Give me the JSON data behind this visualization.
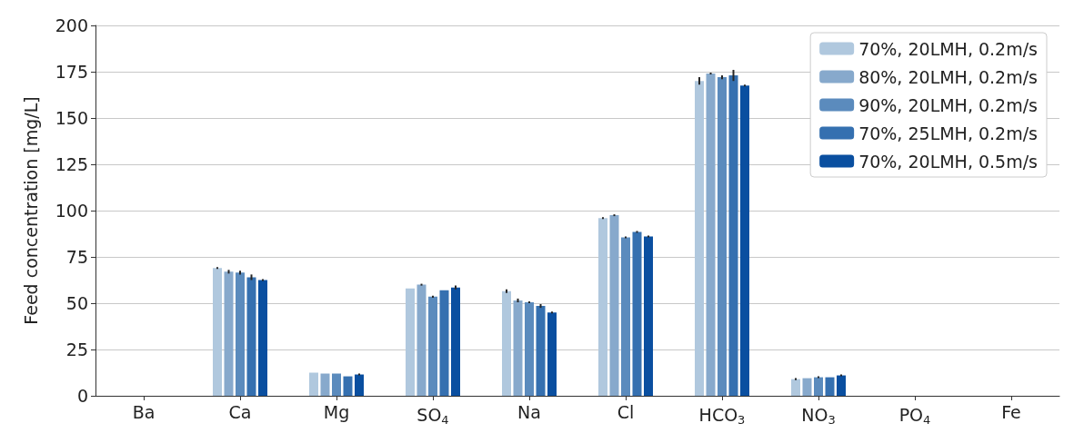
{
  "chart_data": {
    "type": "bar",
    "ylabel": "Feed concentration [mg/L]",
    "categories": [
      "Ba",
      "Ca",
      "Mg",
      "SO$_{4}$",
      "Na",
      "Cl",
      "HCO$_{3}$",
      "NO$_{3}$",
      "PO$_{4}$",
      "Fe"
    ],
    "series": [
      {
        "name": "70%, 20LMH, 0.2m/s",
        "color": "#b0c8de",
        "values": [
          0,
          69,
          12.5,
          58,
          56.5,
          96,
          170,
          9,
          0,
          0
        ],
        "errors": [
          null,
          0.5,
          null,
          null,
          1,
          0.5,
          2,
          0.5,
          null,
          null
        ]
      },
      {
        "name": "80%, 20LMH, 0.2m/s",
        "color": "#87a9cc",
        "values": [
          0,
          67,
          12,
          60,
          51.5,
          97.5,
          174,
          9.5,
          0,
          0
        ],
        "errors": [
          null,
          1,
          null,
          0.5,
          1,
          0.5,
          0.5,
          null,
          null,
          null
        ]
      },
      {
        "name": "90%, 20LMH, 0.2m/s",
        "color": "#5b8bbd",
        "values": [
          0,
          66.5,
          12,
          53.5,
          50.5,
          85.5,
          172,
          10,
          0,
          0
        ],
        "errors": [
          null,
          1,
          null,
          0.5,
          0.5,
          0.5,
          1,
          0.5,
          null,
          null
        ]
      },
      {
        "name": "70%, 25LMH, 0.2m/s",
        "color": "#3570b0",
        "values": [
          0,
          64,
          10.5,
          57,
          48.5,
          88.5,
          173,
          10,
          0,
          0
        ],
        "errors": [
          null,
          1.5,
          null,
          null,
          1,
          0.5,
          3,
          null,
          null,
          null
        ]
      },
      {
        "name": "70%, 20LMH, 0.5m/s",
        "color": "#0a4fa0",
        "values": [
          0,
          62.5,
          11.5,
          58.5,
          45,
          86,
          167.5,
          11,
          0,
          0
        ],
        "errors": [
          null,
          0.5,
          0.5,
          1,
          0.5,
          0.5,
          0.5,
          0.5,
          null,
          null
        ]
      }
    ],
    "ylim": [
      0,
      200
    ],
    "yticks": [
      0,
      25,
      50,
      75,
      100,
      125,
      150,
      175,
      200
    ],
    "grid": "y",
    "legend": "top right"
  }
}
